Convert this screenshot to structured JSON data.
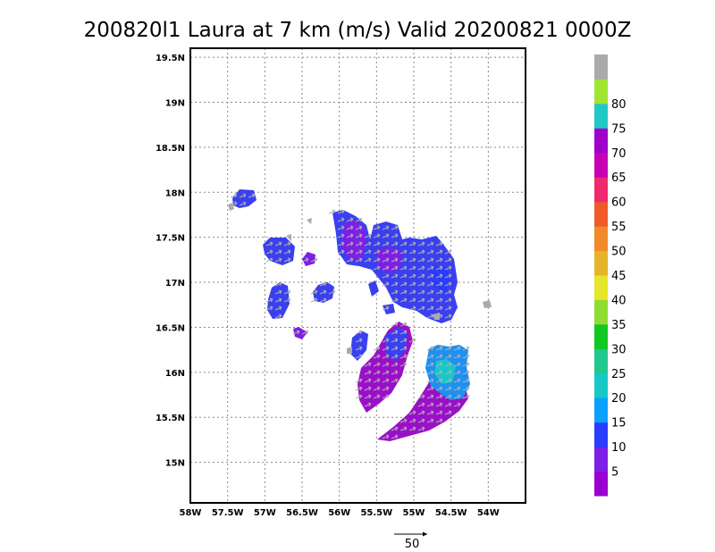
{
  "chart_data": {
    "type": "heatmap",
    "title": "200820l1 Laura at 7 km (m/s) Valid 20200821 0000Z",
    "x_ticks": [
      "58W",
      "57.5W",
      "57W",
      "56.5W",
      "56W",
      "55.5W",
      "55W",
      "54.5W",
      "54W"
    ],
    "y_ticks": [
      "15N",
      "15.5N",
      "16N",
      "16.5N",
      "17N",
      "17.5N",
      "18N",
      "18.5N",
      "19N",
      "19.5N"
    ],
    "xlim": [
      -58,
      -53.5
    ],
    "ylim": [
      14.55,
      19.6
    ],
    "grid": true,
    "colorbar": {
      "labels": [
        "5",
        "10",
        "15",
        "20",
        "25",
        "30",
        "35",
        "40",
        "45",
        "50",
        "55",
        "60",
        "65",
        "70",
        "75",
        "80"
      ],
      "colors": [
        "#9a00d0",
        "#7e1fe6",
        "#2a3cff",
        "#0aa0ff",
        "#17c8c8",
        "#20c890",
        "#10c820",
        "#90dc30",
        "#e6e62a",
        "#e6b42a",
        "#f08a2a",
        "#f05a28",
        "#f02a6e",
        "#c800b4",
        "#a000c8",
        "#20c8c8",
        "#a0e630",
        "#aaaaaa"
      ]
    },
    "wind_reference_label": "50",
    "wind_field_colors": {
      "weak": "#9a10c8",
      "moderate": "#3a40f0",
      "strong": "#1e90f0",
      "edge": "#aaaaaa"
    }
  }
}
